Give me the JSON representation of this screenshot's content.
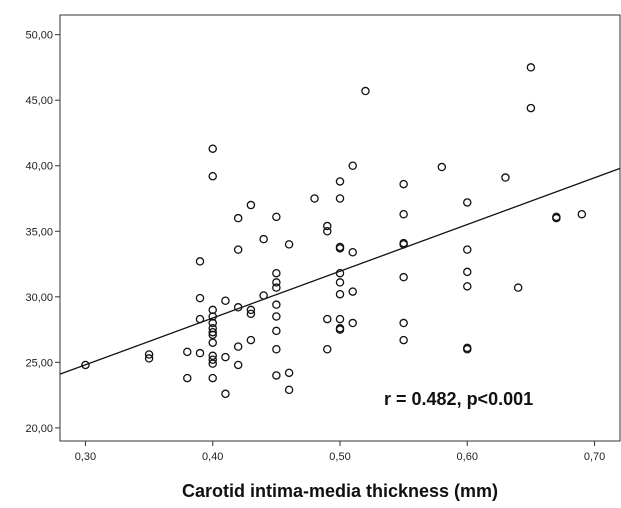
{
  "chart_data": {
    "type": "scatter",
    "title": "",
    "xlabel": "Carotid intima-media thickness (mm)",
    "ylabel": "",
    "xlim": [
      0.28,
      0.72
    ],
    "ylim": [
      19.0,
      51.5
    ],
    "x_ticks": [
      0.3,
      0.4,
      0.5,
      0.6,
      0.7
    ],
    "x_tick_labels": [
      "0,30",
      "0,40",
      "0,50",
      "0,60",
      "0,70"
    ],
    "y_ticks": [
      20,
      25,
      30,
      35,
      40,
      45,
      50
    ],
    "y_tick_labels": [
      "20,00",
      "25,00",
      "30,00",
      "35,00",
      "40,00",
      "45,00",
      "50,00"
    ],
    "grid": false,
    "annotation": "r = 0.482, p<0.001",
    "fit_line": {
      "x": [
        0.28,
        0.72
      ],
      "y": [
        24.1,
        39.8
      ]
    },
    "series": [
      {
        "x": [
          0.3,
          0.35,
          0.35,
          0.38,
          0.38,
          0.39,
          0.39,
          0.39,
          0.39,
          0.4,
          0.4,
          0.4,
          0.4,
          0.4,
          0.4,
          0.4,
          0.4,
          0.4,
          0.4,
          0.4,
          0.4,
          0.4,
          0.41,
          0.41,
          0.41,
          0.42,
          0.42,
          0.42,
          0.42,
          0.42,
          0.43,
          0.43,
          0.43,
          0.43,
          0.44,
          0.44,
          0.45,
          0.45,
          0.45,
          0.45,
          0.45,
          0.45,
          0.45,
          0.45,
          0.45,
          0.46,
          0.46,
          0.46,
          0.48,
          0.49,
          0.49,
          0.49,
          0.49,
          0.5,
          0.5,
          0.5,
          0.5,
          0.5,
          0.5,
          0.5,
          0.5,
          0.5,
          0.5,
          0.51,
          0.51,
          0.51,
          0.51,
          0.52,
          0.55,
          0.55,
          0.55,
          0.55,
          0.55,
          0.55,
          0.55,
          0.58,
          0.6,
          0.6,
          0.6,
          0.6,
          0.6,
          0.6,
          0.63,
          0.64,
          0.65,
          0.65,
          0.67,
          0.67,
          0.69
        ],
        "y": [
          24.8,
          25.6,
          25.3,
          25.8,
          23.8,
          32.7,
          29.9,
          28.3,
          25.7,
          41.3,
          39.2,
          29.0,
          28.5,
          28.0,
          27.6,
          27.3,
          27.1,
          26.5,
          25.5,
          25.2,
          24.9,
          23.8,
          29.7,
          25.4,
          22.6,
          36.0,
          33.6,
          29.2,
          26.2,
          24.8,
          37.0,
          29.0,
          28.7,
          26.7,
          34.4,
          30.1,
          36.1,
          31.8,
          31.1,
          30.7,
          29.4,
          28.5,
          27.4,
          26.0,
          24.0,
          34.0,
          24.2,
          22.9,
          37.5,
          35.4,
          35.0,
          28.3,
          26.0,
          38.8,
          37.5,
          33.8,
          33.7,
          31.8,
          31.1,
          30.2,
          28.3,
          27.6,
          27.5,
          40.0,
          33.4,
          30.4,
          28.0,
          45.7,
          38.6,
          36.3,
          34.1,
          34.0,
          31.5,
          28.0,
          26.7,
          39.9,
          37.2,
          33.6,
          31.9,
          30.8,
          26.1,
          26.0,
          39.1,
          30.7,
          47.5,
          44.4,
          36.1,
          36.0,
          36.3
        ]
      }
    ]
  }
}
